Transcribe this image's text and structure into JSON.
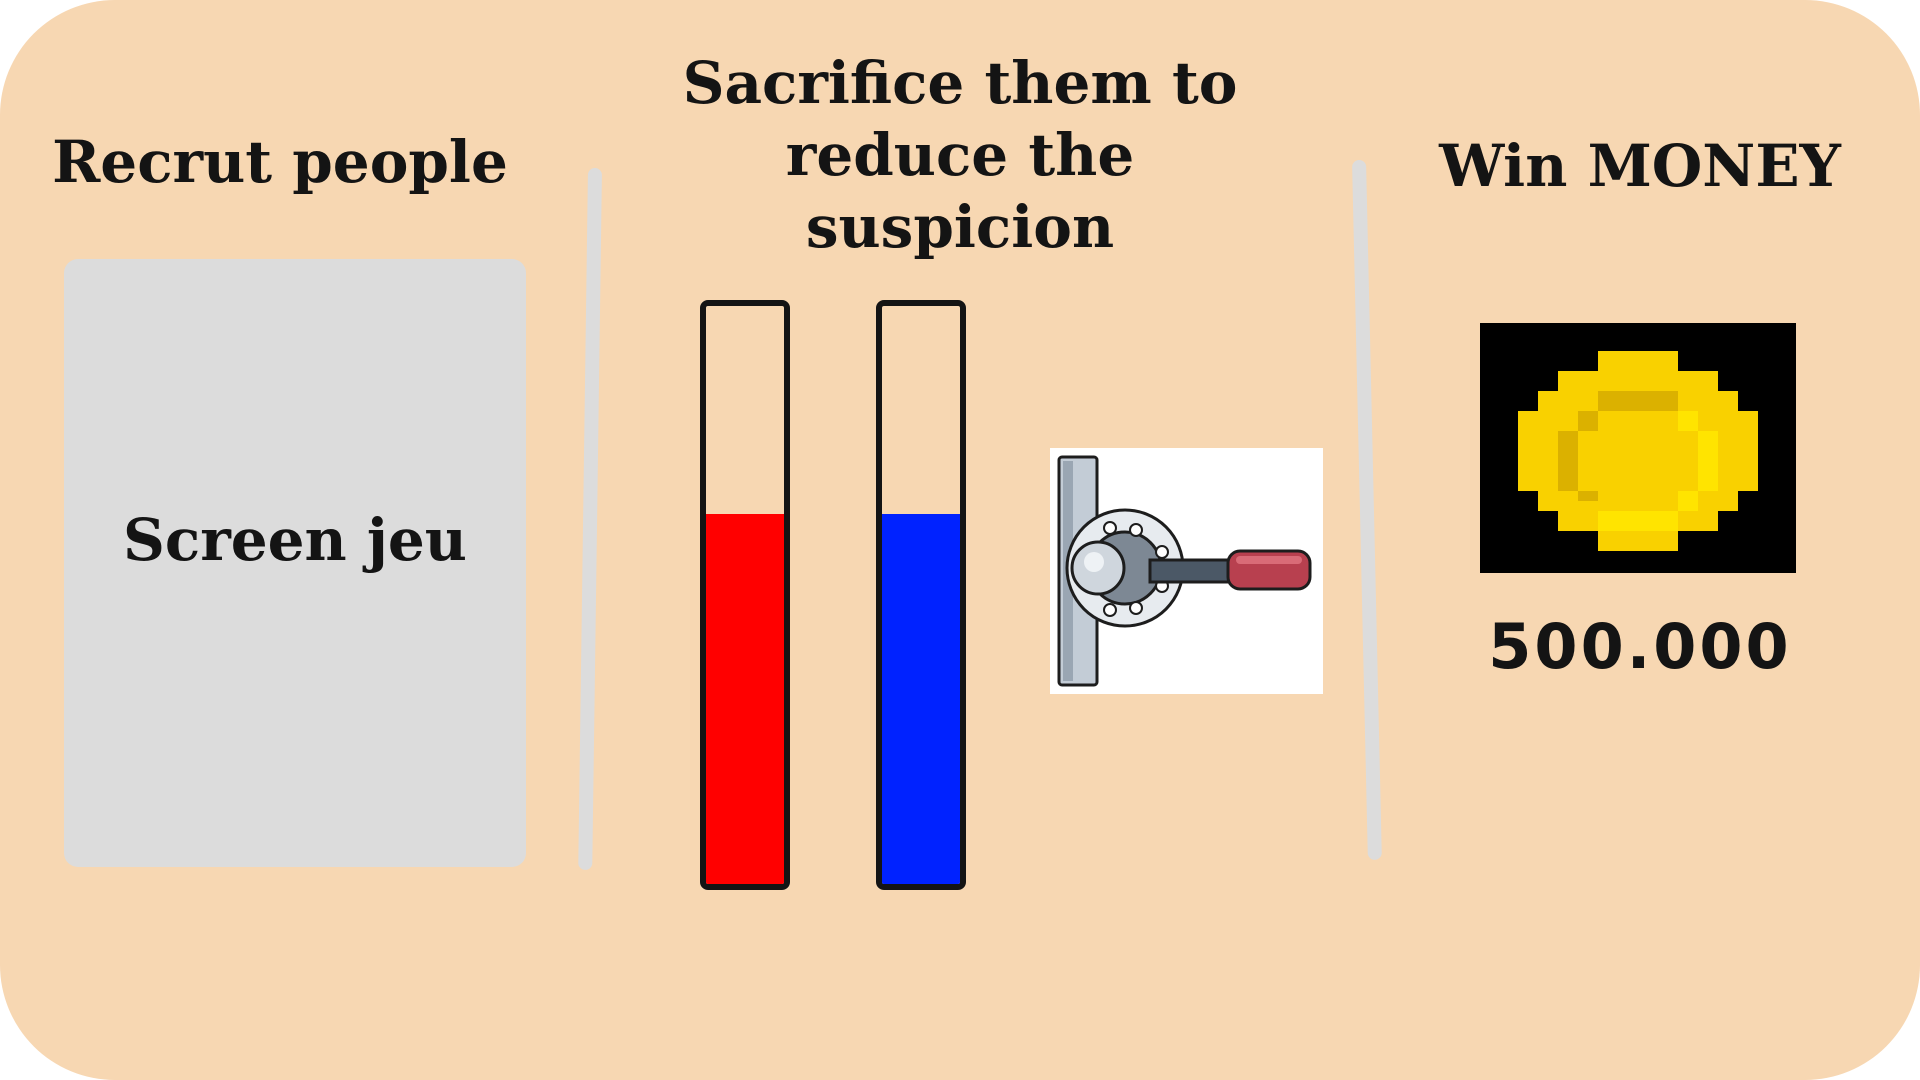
{
  "recruit": {
    "title": "Recrut people",
    "screen_label": "Screen jeu"
  },
  "sacrifice": {
    "title": "Sacrifice them to reduce the suspicion",
    "gauges": [
      {
        "color": "#ff0000",
        "level": 0.64
      },
      {
        "color": "#0022ff",
        "level": 0.64
      }
    ],
    "lever_icon": "lever-switch-icon"
  },
  "money": {
    "title": "Win MONEY",
    "coin_icon": "gold-coin-icon",
    "amount": "500.000"
  },
  "colors": {
    "background": "#f7d7b2",
    "panel": "#dcdcdc",
    "text": "#141414"
  }
}
